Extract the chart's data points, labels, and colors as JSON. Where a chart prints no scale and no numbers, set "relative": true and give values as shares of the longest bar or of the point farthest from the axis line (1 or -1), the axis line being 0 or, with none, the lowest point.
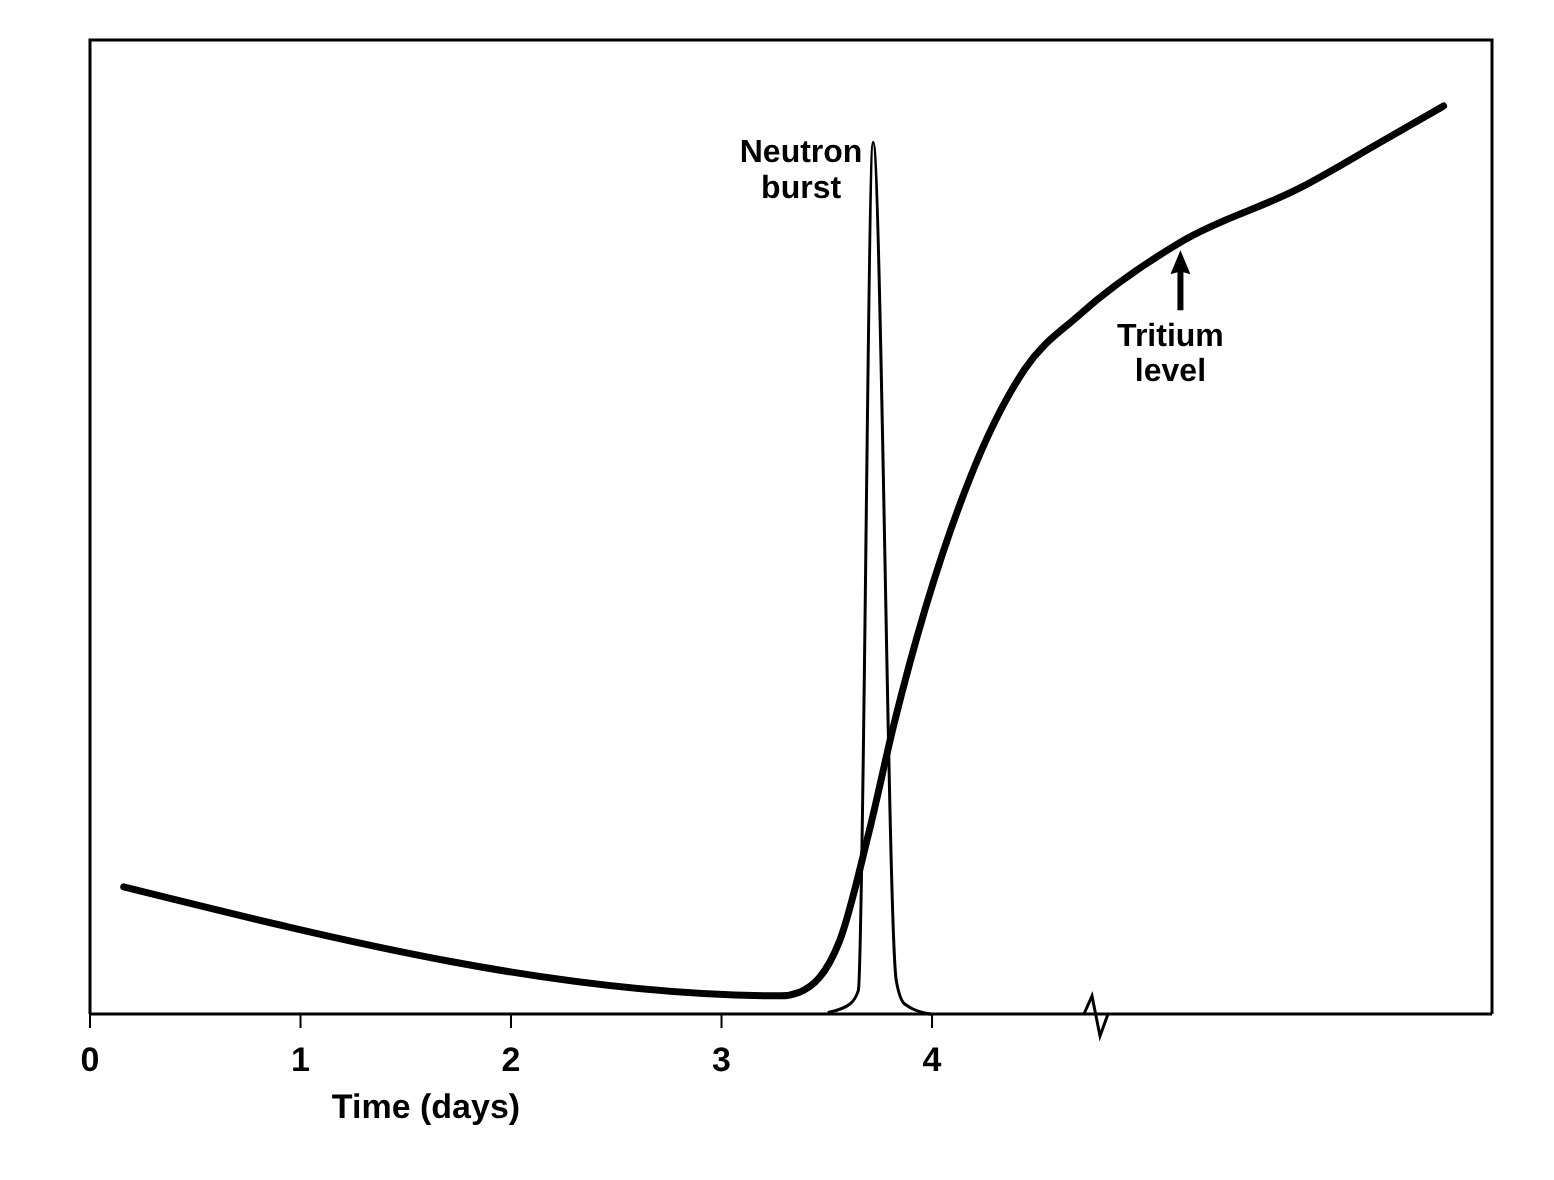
{
  "chart_data": {
    "type": "line",
    "xlabel": "Time (days)",
    "relative": true,
    "xlim": [
      0,
      6.66
    ],
    "xticks": [
      0,
      1,
      2,
      3,
      4
    ],
    "grid": false,
    "marker": "none",
    "line_style": "solid",
    "series": [
      {
        "name": "Neutron burst",
        "color": "#000000",
        "x": [
          3.51,
          3.61,
          3.65,
          3.72,
          3.83,
          3.87,
          3.99
        ],
        "values": [
          0.002,
          0.011,
          0.026,
          0.96,
          0.037,
          0.011,
          0
        ]
      },
      {
        "name": "Tritium level",
        "color": "#000000",
        "x": [
          0.16,
          3.28,
          3.37,
          3.56,
          3.7,
          3.82,
          4.18,
          4.44,
          4.7,
          5.18,
          5.75,
          6.13,
          6.43
        ],
        "values": [
          0.14,
          0.02,
          0.024,
          0.08,
          0.2,
          0.32,
          0.59,
          0.71,
          0.77,
          0.85,
          0.91,
          0.96,
          1
        ]
      }
    ]
  }
}
